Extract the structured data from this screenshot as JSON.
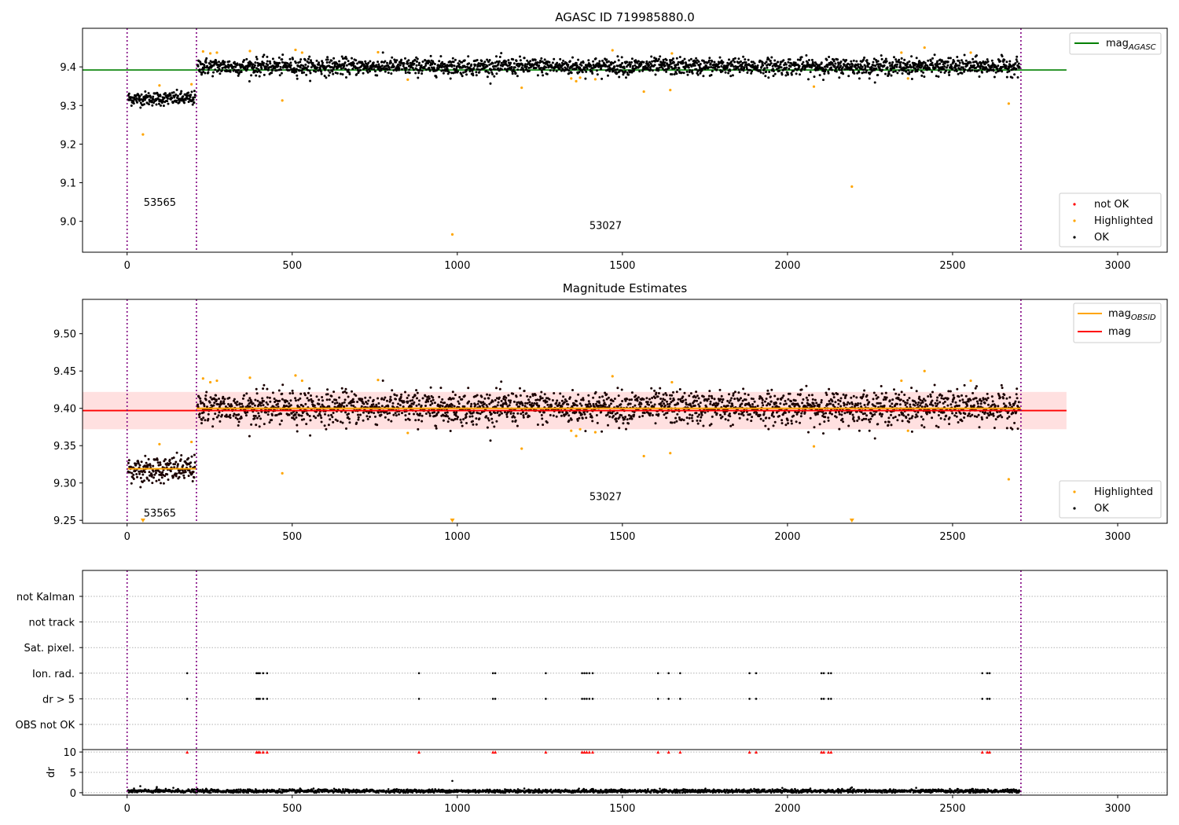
{
  "chart_data": [
    {
      "type": "scatter",
      "title": "AGASC ID 719985880.0",
      "xlim": [
        -135,
        3150
      ],
      "ylim": [
        8.92,
        9.5
      ],
      "xticks": [
        0,
        500,
        1000,
        1500,
        2000,
        2500,
        3000
      ],
      "yticks": [
        9.0,
        9.1,
        9.2,
        9.3,
        9.4
      ],
      "ytick_labels": [
        "9.0",
        "9.1",
        "9.2",
        "9.3",
        "9.4"
      ],
      "obsid_boundaries": [
        0,
        210,
        2707
      ],
      "obsid_labels": [
        {
          "text": "53565",
          "x": 50,
          "y": 9.04
        },
        {
          "text": "53027",
          "x": 1400,
          "y": 8.98
        }
      ],
      "mag_agasc": {
        "value": 9.392,
        "x_range": [
          -135,
          2845
        ],
        "color": "#008000"
      },
      "legend_top": [
        {
          "label": "mag",
          "sub": "AGASC",
          "color": "#008000"
        }
      ],
      "legend_bottom": [
        {
          "label": "not OK",
          "color": "#ff0000"
        },
        {
          "label": "Highlighted",
          "color": "#ffa500"
        },
        {
          "label": "OK",
          "color": "#000000"
        }
      ],
      "segments": [
        {
          "x_start": 0,
          "x_end": 210,
          "mean": 9.318,
          "scatter": 0.009
        },
        {
          "x_start": 210,
          "x_end": 2707,
          "mean": 9.401,
          "scatter": 0.011
        }
      ],
      "highlighted_points": [
        [
          48,
          9.225
        ],
        [
          98,
          9.352
        ],
        [
          195,
          9.355
        ],
        [
          230,
          9.44
        ],
        [
          252,
          9.435
        ],
        [
          272,
          9.437
        ],
        [
          372,
          9.441
        ],
        [
          470,
          9.313
        ],
        [
          510,
          9.444
        ],
        [
          530,
          9.437
        ],
        [
          760,
          9.438
        ],
        [
          850,
          9.367
        ],
        [
          985,
          8.966
        ],
        [
          1195,
          9.346
        ],
        [
          1345,
          9.37
        ],
        [
          1360,
          9.363
        ],
        [
          1372,
          9.372
        ],
        [
          1418,
          9.368
        ],
        [
          1470,
          9.443
        ],
        [
          1565,
          9.336
        ],
        [
          1645,
          9.34
        ],
        [
          1650,
          9.435
        ],
        [
          2080,
          9.349
        ],
        [
          2195,
          9.09
        ],
        [
          2345,
          9.437
        ],
        [
          2365,
          9.37
        ],
        [
          2415,
          9.45
        ],
        [
          2555,
          9.437
        ],
        [
          2670,
          9.305
        ]
      ]
    },
    {
      "type": "scatter",
      "title": "Magnitude Estimates",
      "xlim": [
        -135,
        3150
      ],
      "ylim": [
        9.246,
        9.546
      ],
      "xticks": [
        0,
        500,
        1000,
        1500,
        2000,
        2500,
        3000
      ],
      "yticks": [
        9.25,
        9.3,
        9.35,
        9.4,
        9.45,
        9.5
      ],
      "ytick_labels": [
        "9.25",
        "9.30",
        "9.35",
        "9.40",
        "9.45",
        "9.50"
      ],
      "obsid_boundaries": [
        0,
        210,
        2707
      ],
      "obsid_labels": [
        {
          "text": "53565",
          "x": 50,
          "y": 9.255
        },
        {
          "text": "53027",
          "x": 1400,
          "y": 9.277
        }
      ],
      "mag": {
        "value": 9.397,
        "band": [
          9.372,
          9.422
        ],
        "x_range": [
          -135,
          2845
        ],
        "color": "#ff0000"
      },
      "mag_obsid": [
        {
          "x_start": 0,
          "x_end": 210,
          "value": 9.319
        },
        {
          "x_start": 210,
          "x_end": 2707,
          "value": 9.4
        }
      ],
      "legend_top": [
        {
          "label": "mag",
          "sub": "OBSID",
          "color": "#ffa500"
        },
        {
          "label": "mag",
          "sub": "",
          "color": "#ff0000"
        }
      ],
      "legend_bottom": [
        {
          "label": "Highlighted",
          "color": "#ffa500"
        },
        {
          "label": "OK",
          "color": "#000000"
        }
      ],
      "offscale_markers": [
        48,
        985,
        2195
      ]
    },
    {
      "type": "scatter",
      "xlim": [
        -135,
        3150
      ],
      "xticks": [
        0,
        500,
        1000,
        1500,
        2000,
        2500,
        3000
      ],
      "obsid_boundaries": [
        0,
        210,
        2707
      ],
      "flag_rows": [
        "not Kalman",
        "not track",
        "Sat. pixel.",
        "Ion. rad.",
        "dr > 5",
        "OBS not OK"
      ],
      "flagged_x": [
        182,
        392,
        397,
        402,
        412,
        424,
        884,
        1108,
        1115,
        1268,
        1378,
        1385,
        1392,
        1400,
        1410,
        1608,
        1640,
        1675,
        1885,
        1905,
        2103,
        2110,
        2124,
        2132,
        2590,
        2605,
        2612
      ],
      "dr": {
        "ylabel": "dr",
        "yticks": [
          0,
          5,
          10
        ],
        "ylim": [
          -0.6,
          10.6
        ],
        "typical": 0.4,
        "spikes": [
          [
            985,
            2.9
          ],
          [
            2195,
            1.3
          ],
          [
            40,
            1.6
          ],
          [
            90,
            1.4
          ],
          [
            140,
            1.2
          ]
        ]
      }
    }
  ]
}
